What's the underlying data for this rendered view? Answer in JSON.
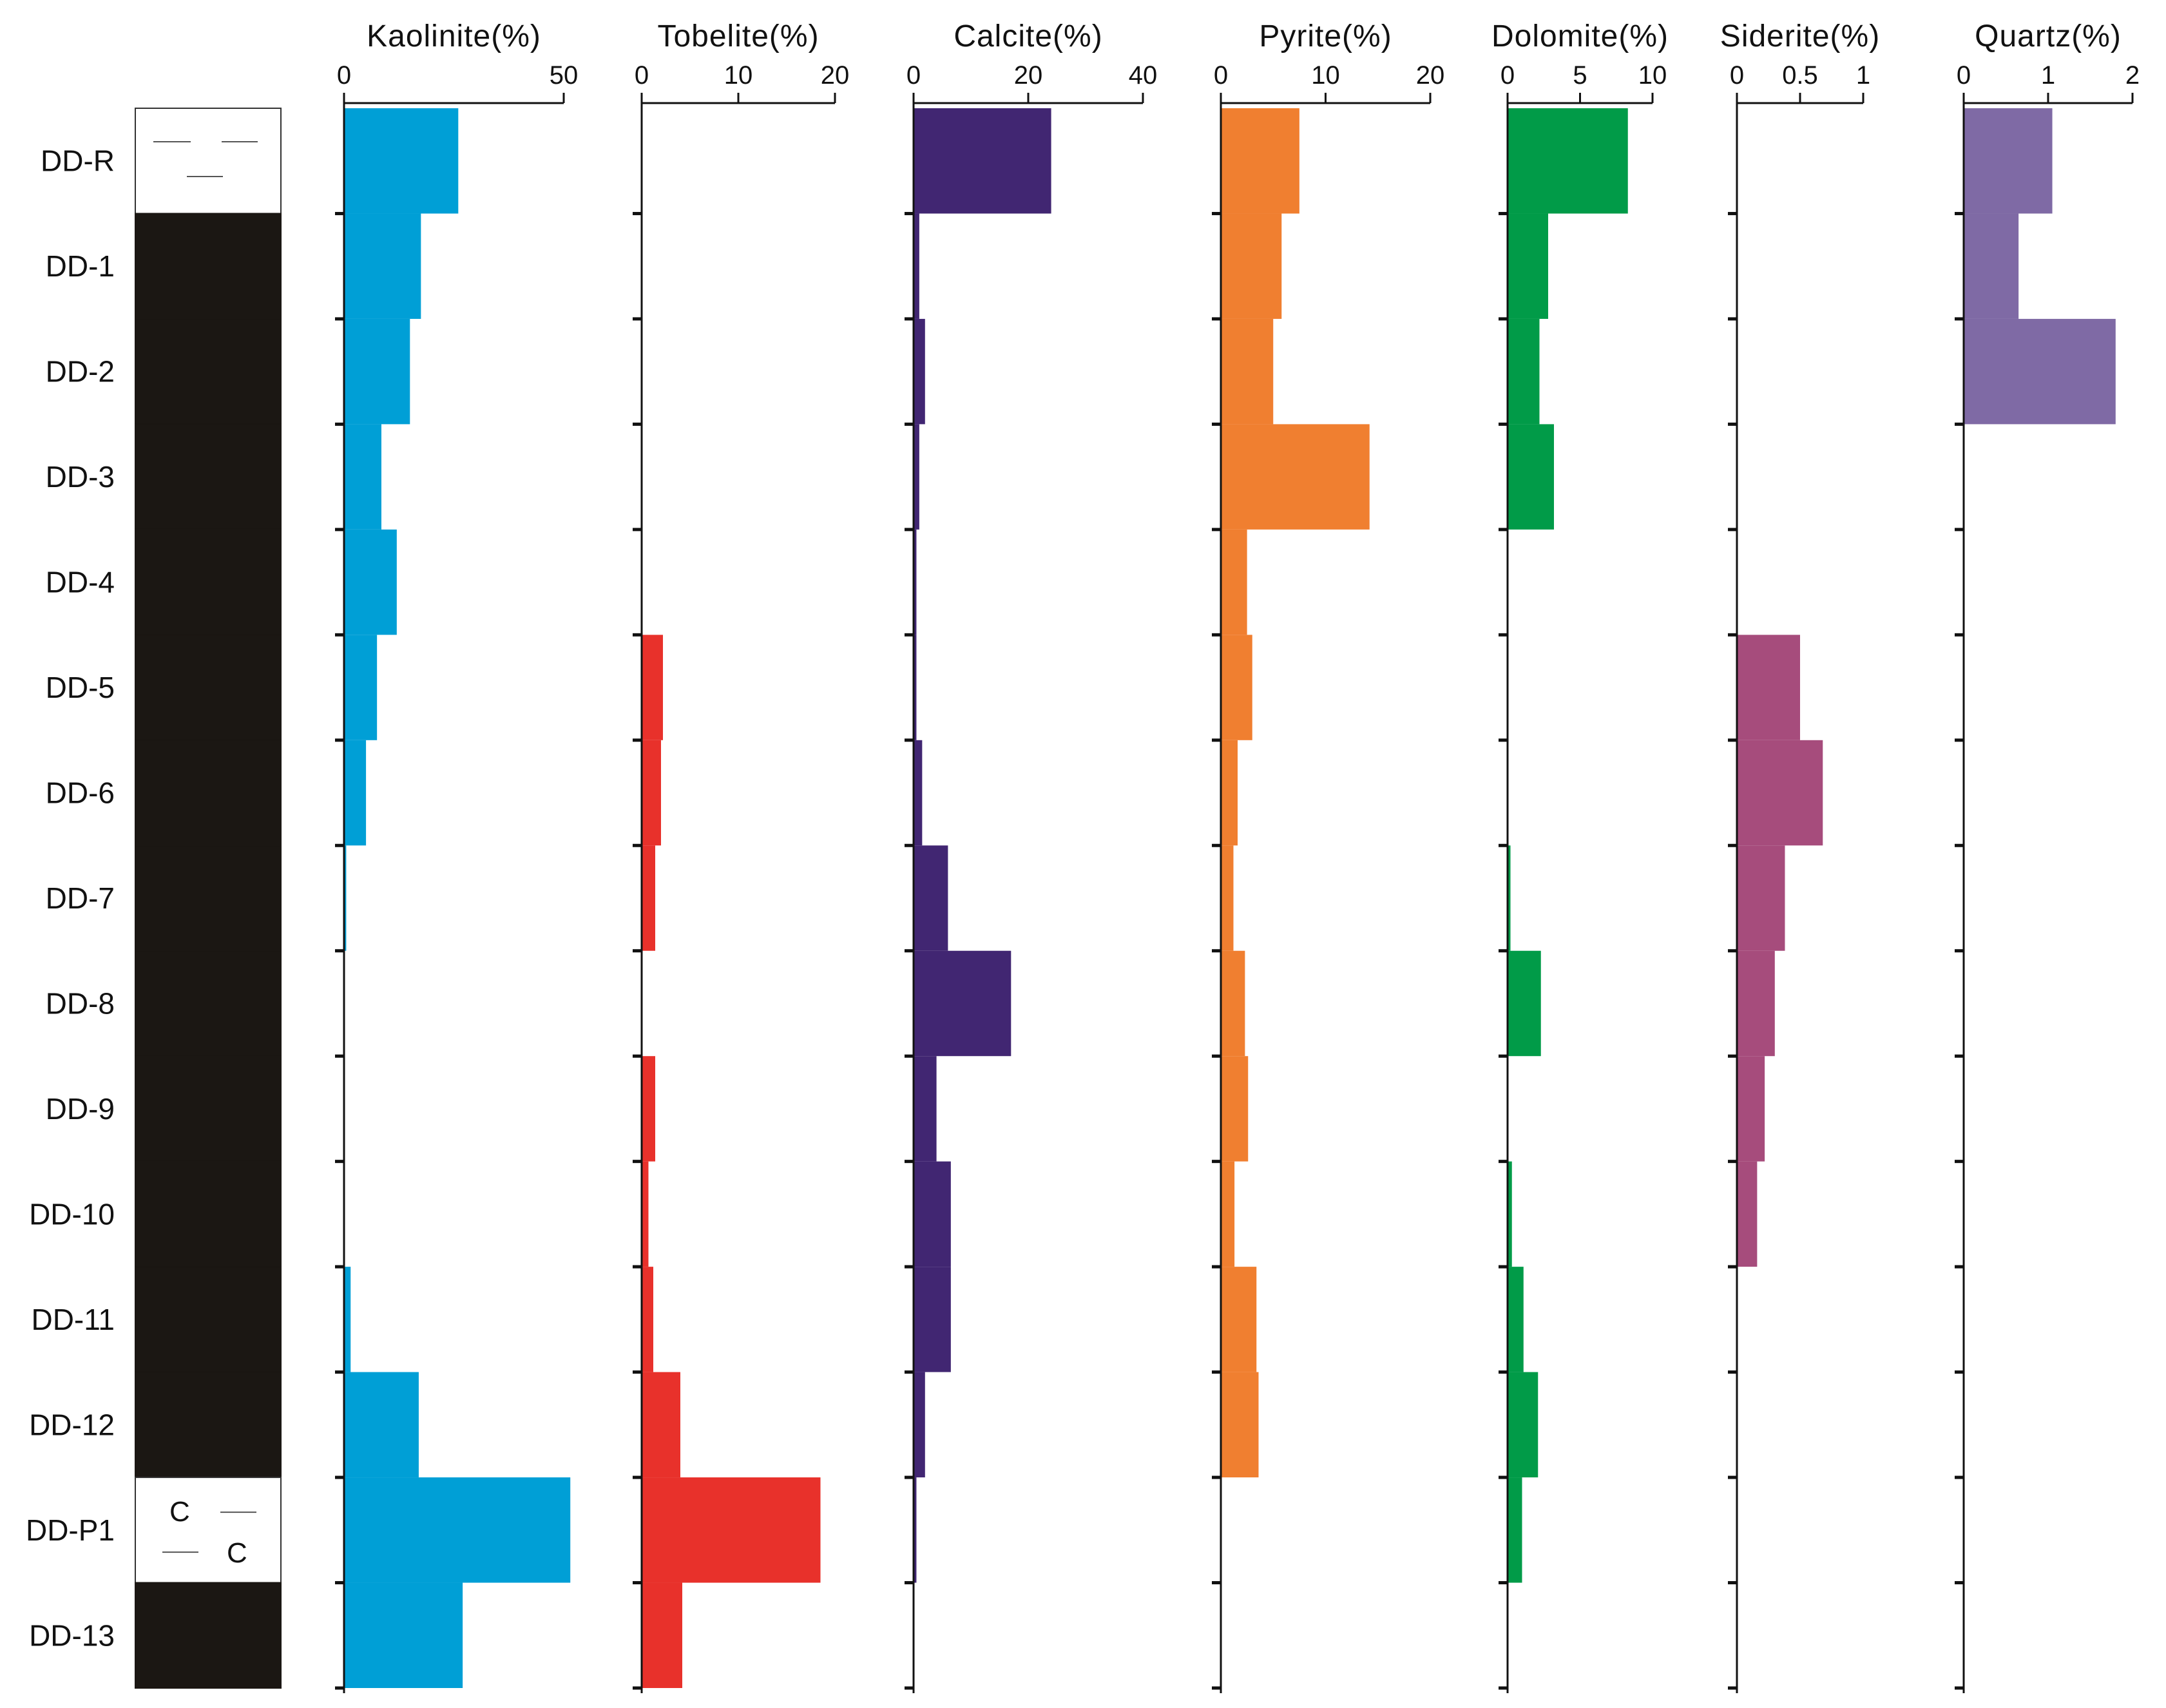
{
  "chart_data": {
    "type": "bar",
    "orientation": "horizontal-step",
    "description_free": true,
    "samples": [
      "DD-R",
      "DD-1",
      "DD-2",
      "DD-3",
      "DD-4",
      "DD-5",
      "DD-6",
      "DD-7",
      "DD-8",
      "DD-9",
      "DD-10",
      "DD-11",
      "DD-12",
      "DD-P1",
      "DD-13"
    ],
    "lithology": [
      "mudstone",
      "coal",
      "coal",
      "coal",
      "coal",
      "coal",
      "coal",
      "coal",
      "coal",
      "coal",
      "coal",
      "coal",
      "coal",
      "carbonaceous",
      "coal"
    ],
    "lithology_symbols": {
      "carbonaceous": "C"
    },
    "series": [
      {
        "name": "Kaolinite(%)",
        "color": "#009fd6",
        "xlim": [
          0,
          50
        ],
        "ticks": [
          "0",
          "50"
        ],
        "values": [
          26,
          17.5,
          15,
          8.5,
          12,
          7.5,
          5,
          0.5,
          0,
          0,
          0,
          1.5,
          17,
          51.5,
          27
        ]
      },
      {
        "name": "Tobelite(%)",
        "color": "#e8312b",
        "xlim": [
          0,
          20
        ],
        "ticks": [
          "0",
          "10",
          "20"
        ],
        "values": [
          0,
          0,
          0,
          0,
          0,
          2.2,
          2.0,
          1.4,
          0,
          1.4,
          0.7,
          1.2,
          4.0,
          18.5,
          4.2
        ]
      },
      {
        "name": "Calcite(%)",
        "color": "#412672",
        "xlim": [
          0,
          40
        ],
        "ticks": [
          "0",
          "20",
          "40"
        ],
        "values": [
          24,
          1,
          2,
          1,
          0.5,
          0.5,
          1.5,
          6,
          17,
          4,
          6.5,
          6.5,
          2,
          0.5,
          0
        ]
      },
      {
        "name": "Pyrite(%)",
        "color": "#f07f30",
        "xlim": [
          0,
          20
        ],
        "ticks": [
          "0",
          "10",
          "20"
        ],
        "values": [
          7.5,
          5.8,
          5,
          14.2,
          2.5,
          3,
          1.6,
          1.2,
          2.3,
          2.6,
          1.3,
          3.4,
          3.6,
          0,
          0
        ]
      },
      {
        "name": "Dolomite(%)",
        "color": "#019b48",
        "xlim": [
          0,
          10
        ],
        "ticks": [
          "0",
          "5",
          "10"
        ],
        "values": [
          8.3,
          2.8,
          2.2,
          3.2,
          0,
          0,
          0,
          0.2,
          2.3,
          0,
          0.3,
          1.1,
          2.1,
          1.0,
          0
        ]
      },
      {
        "name": "Siderite(%)",
        "color": "#a64c7c",
        "xlim": [
          0,
          1
        ],
        "ticks": [
          "0",
          "0.5",
          "1"
        ],
        "values": [
          0,
          0,
          0,
          0,
          0,
          0.5,
          0.68,
          0.38,
          0.3,
          0.22,
          0.16,
          0,
          0,
          0,
          0
        ]
      },
      {
        "name": "Quartz(%)",
        "color": "#7f6aa5",
        "xlim": [
          0,
          2
        ],
        "ticks": [
          "0",
          "1",
          "2"
        ],
        "values": [
          1.05,
          0.65,
          1.8,
          0,
          0,
          0,
          0,
          0,
          0,
          0,
          0,
          0,
          0,
          0,
          0
        ]
      }
    ]
  }
}
